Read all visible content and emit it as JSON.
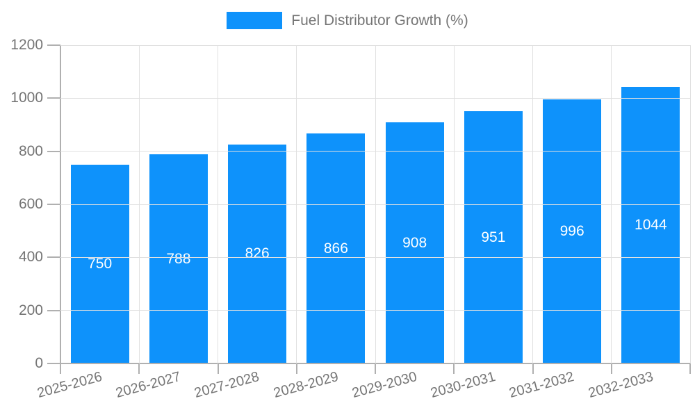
{
  "chart_data": {
    "type": "bar",
    "title": "",
    "legend": "Fuel Distributor Growth (%)",
    "legend_position": "top-center",
    "categories": [
      "2025-2026",
      "2026-2027",
      "2027-2028",
      "2028-2029",
      "2029-2030",
      "2030-2031",
      "2031-2032",
      "2032-2033"
    ],
    "values": [
      750,
      788,
      826,
      866,
      908,
      951,
      996,
      1044
    ],
    "xlabel": "",
    "ylabel": "",
    "ylim": [
      0,
      1200
    ],
    "yticks": [
      0,
      200,
      400,
      600,
      800,
      1000,
      1200
    ],
    "grid": true,
    "x_label_rotation_deg": -15,
    "bar_labels_inside": true,
    "colors": {
      "bar": "#0e92fb",
      "bar_label": "#ffffff",
      "axis_text": "#757575",
      "legend_text": "#757575",
      "grid_line": "#e0e0e0",
      "axis_line": "#b0b0b0",
      "background": "#ffffff"
    }
  }
}
